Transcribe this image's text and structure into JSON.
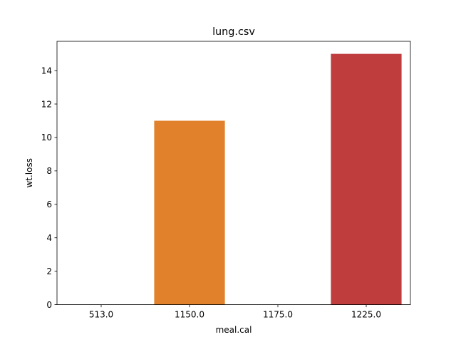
{
  "chart_data": {
    "type": "bar",
    "title": "lung.csv",
    "xlabel": "meal.cal",
    "ylabel": "wt.loss",
    "categories": [
      "513.0",
      "1150.0",
      "1175.0",
      "1225.0"
    ],
    "values": [
      0,
      11,
      0,
      15
    ],
    "colors": [
      "#3274a1",
      "#e1812c",
      "#3a923a",
      "#c03d3e"
    ],
    "ylim": [
      0,
      15.75
    ],
    "yticks": [
      "0",
      "2",
      "4",
      "6",
      "8",
      "10",
      "12",
      "14"
    ],
    "grid": false,
    "legend": "none"
  }
}
